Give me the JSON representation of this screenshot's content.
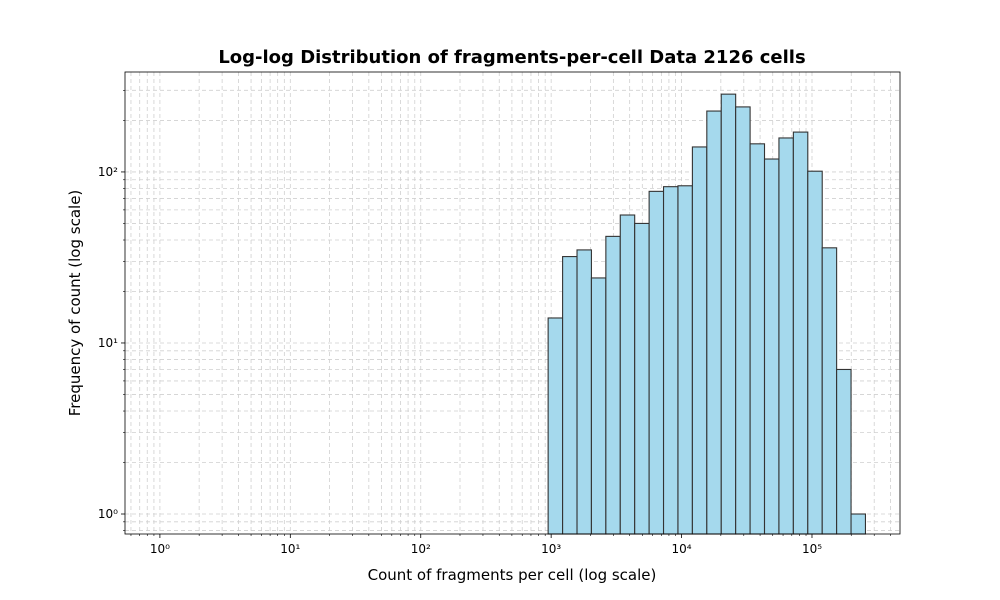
{
  "chart_data": {
    "type": "histogram",
    "title": "Log-log Distribution of fragments-per-cell Data 2126 cells",
    "x_label": "Count of fragments per cell (log scale)",
    "y_label": "Frequency of count (log scale)",
    "bins": [
      948,
      1224,
      1579,
      2036,
      2627,
      3388,
      4371,
      5639,
      7273,
      9384,
      12106,
      15616,
      20150,
      25990,
      33530,
      43250,
      55800,
      71980,
      92860,
      119800,
      154500,
      199300,
      257000
    ],
    "values": [
      14,
      32,
      35,
      24,
      42,
      56,
      50,
      77,
      82,
      83,
      140,
      227,
      285,
      240,
      146,
      119,
      158,
      171,
      101,
      36,
      7,
      1
    ],
    "color": "#a5d9ed",
    "edge_color": "#333333",
    "xscale": "log",
    "yscale": "log",
    "xlim": [
      0.54,
      473000
    ],
    "ylim": [
      0.764,
      384
    ],
    "xticks": [
      {
        "value": 1,
        "label": "10⁰"
      },
      {
        "value": 10,
        "label": "10¹"
      },
      {
        "value": 100,
        "label": "10²"
      },
      {
        "value": 1000,
        "label": "10³"
      },
      {
        "value": 10000,
        "label": "10⁴"
      },
      {
        "value": 100000,
        "label": "10⁵"
      }
    ],
    "yticks": [
      {
        "value": 1,
        "label": "10⁰"
      },
      {
        "value": 10,
        "label": "10¹"
      },
      {
        "value": 100,
        "label": "10²"
      }
    ],
    "grid": true,
    "minor_grid": true
  }
}
